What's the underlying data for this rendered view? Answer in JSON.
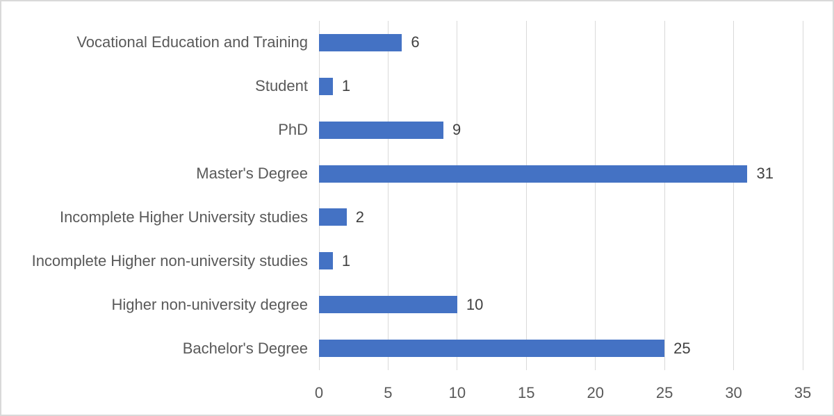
{
  "chart_data": {
    "type": "bar",
    "orientation": "horizontal",
    "title": "",
    "xlabel": "",
    "ylabel": "",
    "categories": [
      "Vocational Education and Training",
      "Student",
      "PhD",
      "Master's Degree",
      "Incomplete Higher University studies",
      "Incomplete Higher non-university studies",
      "Higher non-university degree",
      "Bachelor's Degree"
    ],
    "values": [
      6,
      1,
      9,
      31,
      2,
      1,
      10,
      25
    ],
    "data_labels": [
      "6",
      "1",
      "9",
      "31",
      "2",
      "1",
      "10",
      "25"
    ],
    "xlim": [
      0,
      35
    ],
    "xticks": [
      0,
      5,
      10,
      15,
      20,
      25,
      30,
      35
    ],
    "xtick_labels": [
      "0",
      "5",
      "10",
      "15",
      "20",
      "25",
      "30",
      "35"
    ],
    "grid": true,
    "legend": "none",
    "colors": {
      "bar": "#4472c4",
      "gridline": "#d9d9d9",
      "category_text": "#595959",
      "tick_text": "#595959",
      "value_text": "#404040",
      "background": "#ffffff",
      "frame_border": "#d9d9d9"
    }
  }
}
